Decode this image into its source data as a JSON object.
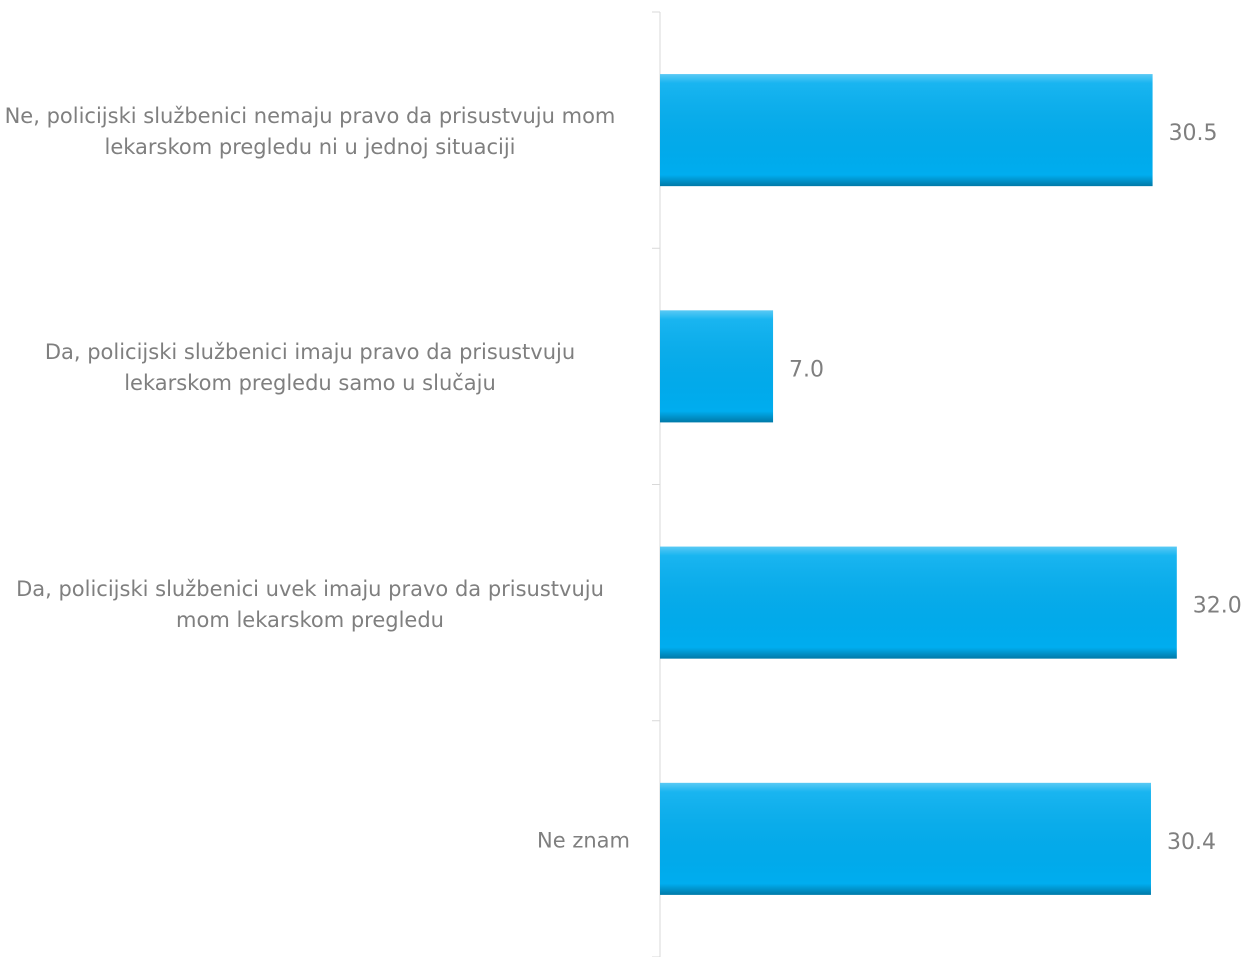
{
  "chart_data": {
    "type": "bar",
    "orientation": "horizontal",
    "categories": [
      "Ne, policijski službenici nemaju pravo da prisustvuju mom lekarskom pregledu ni u jednoj situaciji",
      "Da, policijski službenici imaju pravo da prisustvuju lekarskom pregledu samo u slučaju",
      "Da, policijski službenici uvek imaju pravo da prisustvuju mom lekarskom pregledu",
      "Ne znam"
    ],
    "values": [
      30.5,
      7.0,
      32.0,
      30.4
    ],
    "value_labels": [
      "30.5",
      "7.0",
      "32.0",
      "30.4"
    ],
    "color": "#00adef"
  }
}
